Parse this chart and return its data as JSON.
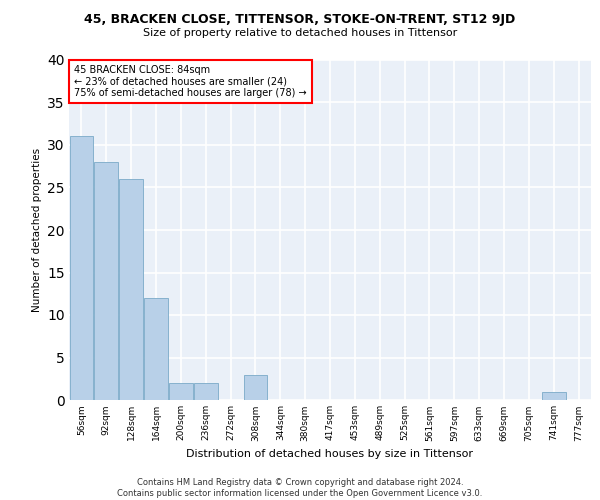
{
  "title_line1": "45, BRACKEN CLOSE, TITTENSOR, STOKE-ON-TRENT, ST12 9JD",
  "title_line2": "Size of property relative to detached houses in Tittensor",
  "xlabel": "Distribution of detached houses by size in Tittensor",
  "ylabel": "Number of detached properties",
  "categories": [
    "56sqm",
    "92sqm",
    "128sqm",
    "164sqm",
    "200sqm",
    "236sqm",
    "272sqm",
    "308sqm",
    "344sqm",
    "380sqm",
    "417sqm",
    "453sqm",
    "489sqm",
    "525sqm",
    "561sqm",
    "597sqm",
    "633sqm",
    "669sqm",
    "705sqm",
    "741sqm",
    "777sqm"
  ],
  "values": [
    31,
    28,
    26,
    12,
    2,
    2,
    0,
    3,
    0,
    0,
    0,
    0,
    0,
    0,
    0,
    0,
    0,
    0,
    0,
    1,
    0
  ],
  "bar_color": "#b8d0e8",
  "bar_edge_color": "#7aaac8",
  "bg_color": "#eaf0f8",
  "grid_color": "#ffffff",
  "annotation_line1": "45 BRACKEN CLOSE: 84sqm",
  "annotation_line2": "← 23% of detached houses are smaller (24)",
  "annotation_line3": "75% of semi-detached houses are larger (78) →",
  "footer_text": "Contains HM Land Registry data © Crown copyright and database right 2024.\nContains public sector information licensed under the Open Government Licence v3.0.",
  "ylim": [
    0,
    40
  ],
  "yticks": [
    0,
    5,
    10,
    15,
    20,
    25,
    30,
    35,
    40
  ]
}
